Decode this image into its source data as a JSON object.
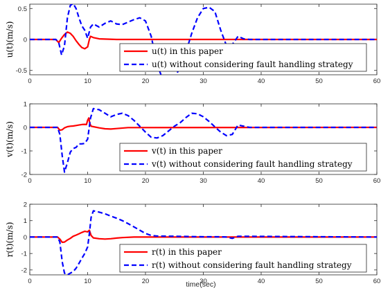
{
  "chart_data": [
    {
      "type": "line",
      "ylabel": "u(t)(m/s)",
      "xlim": [
        0,
        60
      ],
      "ylim": [
        -0.57,
        0.57
      ],
      "xticks": [
        "0",
        "10",
        "20",
        "30",
        "40",
        "50",
        "60"
      ],
      "yticks": [
        "0.5",
        "0",
        "-0.5"
      ],
      "yticks_values": [
        0.5,
        0,
        -0.5
      ],
      "grid": false,
      "legend_position": "bottom-right",
      "series": [
        {
          "name": "u(t) in this paper",
          "color": "#ff0000",
          "style": "solid",
          "x": [
            0,
            4.5,
            5.0,
            5.5,
            6.0,
            6.5,
            7.0,
            7.5,
            8.0,
            8.5,
            9.0,
            9.5,
            10.0,
            10.3,
            10.5,
            11.0,
            12.0,
            15.0,
            20.0,
            30.0,
            40.0,
            60.0
          ],
          "y": [
            0,
            0,
            -0.05,
            0.02,
            0.08,
            0.12,
            0.1,
            0.05,
            -0.02,
            -0.08,
            -0.13,
            -0.15,
            -0.12,
            0.0,
            0.05,
            0.03,
            0.01,
            0,
            0,
            0,
            0,
            0
          ]
        },
        {
          "name": "u(t) without considering fault handling strategy",
          "color": "#0000ff",
          "style": "dashed",
          "x": [
            0,
            4.5,
            5.0,
            5.5,
            6.0,
            6.5,
            7.0,
            7.5,
            8.0,
            8.5,
            9.0,
            9.5,
            10.0,
            10.5,
            11.0,
            12.0,
            13.0,
            14.0,
            15.0,
            16.0,
            17.0,
            18.0,
            19.0,
            20.0,
            21.0,
            22.0,
            23.0,
            24.0,
            25.0,
            26.0,
            27.0,
            28.0,
            29.0,
            30.0,
            31.0,
            32.0,
            33.0,
            34.0,
            35.0,
            36.0,
            37.0,
            38.0,
            60.0
          ],
          "y": [
            0,
            0,
            -0.05,
            -0.25,
            -0.1,
            0.35,
            0.55,
            0.58,
            0.5,
            0.35,
            0.22,
            0.15,
            0.02,
            0.2,
            0.25,
            0.2,
            0.26,
            0.3,
            0.25,
            0.24,
            0.28,
            0.32,
            0.35,
            0.3,
            0.05,
            -0.4,
            -0.65,
            -0.7,
            -0.62,
            -0.45,
            -0.2,
            0.1,
            0.35,
            0.5,
            0.52,
            0.45,
            0.15,
            -0.1,
            -0.08,
            0.05,
            0.01,
            0,
            0
          ]
        }
      ]
    },
    {
      "type": "line",
      "ylabel": "v(t)(m/s)",
      "xlim": [
        0,
        60
      ],
      "ylim": [
        -2,
        1
      ],
      "xticks": [
        "0",
        "10",
        "20",
        "30",
        "40",
        "50",
        "60"
      ],
      "yticks": [
        "1",
        "0",
        "-1",
        "-2"
      ],
      "yticks_values": [
        1,
        0,
        -1,
        -2
      ],
      "grid": false,
      "legend_position": "bottom-right",
      "series": [
        {
          "name": "v(t) in this paper",
          "color": "#ff0000",
          "style": "solid",
          "x": [
            0,
            4.8,
            5.2,
            5.6,
            6.0,
            6.5,
            7.0,
            7.5,
            8.0,
            8.5,
            9.0,
            9.5,
            9.8,
            10.0,
            10.2,
            10.4,
            10.6,
            11.0,
            12.0,
            13.0,
            14.0,
            15.0,
            17.0,
            60.0
          ],
          "y": [
            0,
            0,
            -0.12,
            -0.1,
            -0.02,
            0.03,
            0.05,
            0.06,
            0.08,
            0.1,
            0.12,
            0.13,
            0.12,
            0.3,
            0.4,
            0.15,
            0.05,
            0.03,
            -0.02,
            -0.06,
            -0.07,
            -0.05,
            -0.01,
            0
          ]
        },
        {
          "name": "v(t) without considering fault handling strategy",
          "color": "#0000ff",
          "style": "dashed",
          "x": [
            0,
            4.8,
            5.2,
            5.6,
            6.0,
            6.5,
            7.0,
            7.5,
            8.0,
            8.5,
            9.0,
            9.5,
            10.0,
            10.5,
            11.0,
            12.0,
            13.0,
            14.0,
            15.0,
            16.0,
            17.0,
            18.0,
            19.0,
            20.0,
            21.0,
            22.0,
            23.0,
            24.0,
            25.0,
            26.0,
            27.0,
            28.0,
            29.0,
            30.0,
            31.0,
            32.0,
            33.0,
            34.0,
            35.0,
            36.0,
            37.0,
            38.0,
            60.0
          ],
          "y": [
            0,
            0,
            -0.3,
            -1.2,
            -1.9,
            -1.5,
            -1.05,
            -0.9,
            -0.85,
            -0.7,
            -0.7,
            -0.68,
            -0.5,
            0.4,
            0.8,
            0.75,
            0.6,
            0.45,
            0.55,
            0.6,
            0.5,
            0.3,
            0.05,
            -0.2,
            -0.42,
            -0.45,
            -0.35,
            -0.15,
            0.05,
            0.2,
            0.42,
            0.6,
            0.58,
            0.45,
            0.25,
            0.02,
            -0.2,
            -0.35,
            -0.3,
            0.1,
            0.05,
            0,
            0
          ]
        }
      ]
    },
    {
      "type": "line",
      "ylabel": "r(t)(m/s)",
      "xlim": [
        0,
        60
      ],
      "ylim": [
        -2.3,
        2
      ],
      "xticks": [
        "0",
        "10",
        "20",
        "30",
        "40",
        "50",
        "60"
      ],
      "yticks": [
        "2",
        "1",
        "0",
        "-1",
        "-2"
      ],
      "yticks_values": [
        2,
        1,
        0,
        -1,
        -2
      ],
      "grid": false,
      "legend_position": "bottom-right",
      "series": [
        {
          "name": "r(t) in this paper",
          "color": "#ff0000",
          "style": "solid",
          "x": [
            0,
            4.8,
            5.2,
            5.6,
            6.0,
            6.5,
            7.0,
            7.5,
            8.0,
            8.5,
            9.0,
            9.5,
            10.0,
            10.3,
            10.6,
            11.0,
            12.0,
            13.0,
            14.0,
            15.0,
            16.0,
            18.0,
            60.0
          ],
          "y": [
            0,
            0,
            -0.12,
            -0.32,
            -0.3,
            -0.18,
            -0.08,
            0.05,
            0.12,
            0.2,
            0.28,
            0.35,
            0.32,
            0.42,
            0.1,
            -0.05,
            -0.1,
            -0.12,
            -0.1,
            -0.06,
            -0.03,
            0,
            0
          ]
        },
        {
          "name": "r(t) without considering fault handling strategy",
          "color": "#0000ff",
          "style": "dashed",
          "x": [
            0,
            4.8,
            5.2,
            5.6,
            6.0,
            6.5,
            7.0,
            7.5,
            8.0,
            8.5,
            9.0,
            9.5,
            10.0,
            10.3,
            10.6,
            11.0,
            12.0,
            13.0,
            14.0,
            15.0,
            16.0,
            17.0,
            18.0,
            19.0,
            20.0,
            21.0,
            22.0,
            25.0,
            30.0,
            33.0,
            34.0,
            35.0,
            36.0,
            60.0
          ],
          "y": [
            0,
            0,
            -0.3,
            -1.5,
            -2.2,
            -2.3,
            -2.2,
            -2.1,
            -1.9,
            -1.6,
            -1.3,
            -1.0,
            -0.6,
            0.2,
            1.2,
            1.6,
            1.52,
            1.42,
            1.28,
            1.15,
            1.0,
            0.82,
            0.62,
            0.42,
            0.22,
            0.1,
            0.06,
            0.05,
            0.02,
            0.02,
            0.0,
            -0.08,
            0.05,
            0
          ]
        }
      ]
    }
  ],
  "xaxis_title": "time(sec)",
  "legend_entries": [
    [
      "u(t) in this paper",
      "u(t) without considering fault handling strategy"
    ],
    [
      "v(t) in this paper",
      "v(t) without considering fault handling strategy"
    ],
    [
      "r(t) in this paper",
      "r(t) without considering fault handling strategy"
    ]
  ]
}
